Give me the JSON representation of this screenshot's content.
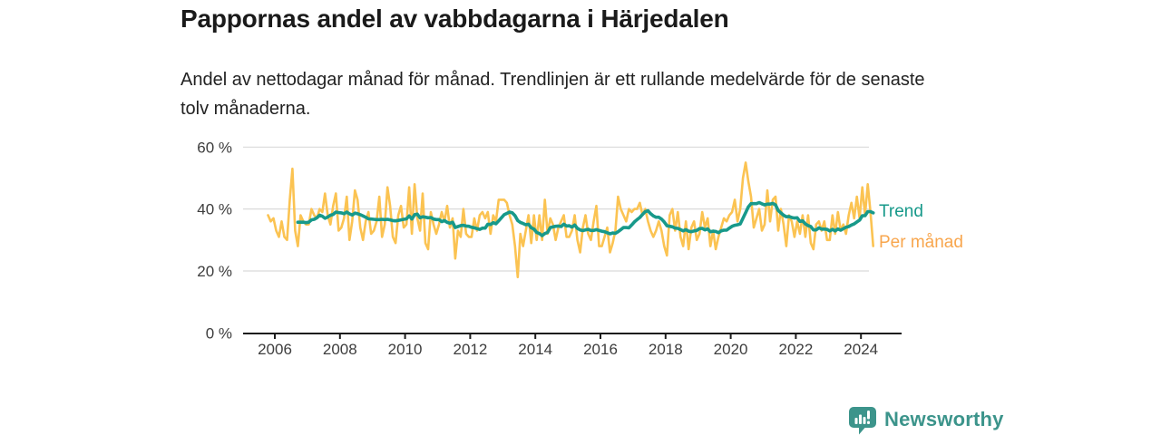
{
  "header": {
    "title": "Pappornas andel av vabbdagarna i Härjedalen",
    "subtitle": "Andel av nettodagar månad för månad. Trendlinjen är ett rullande medelvärde för de senaste tolv månaderna."
  },
  "chart_data": {
    "type": "line",
    "title": "Pappornas andel av vabbdagarna i Härjedalen",
    "xlabel": "",
    "ylabel": "",
    "unit": "%",
    "grid": "horizontal",
    "legend_position": "right-end-of-lines",
    "x_start": "2005-10",
    "x_interval": "month",
    "x_end": "2024-05",
    "xlim": [
      2005.5,
      2025.2
    ],
    "ylim": [
      0,
      63
    ],
    "x_tick_years": [
      2006,
      2008,
      2010,
      2012,
      2014,
      2016,
      2018,
      2020,
      2022,
      2024
    ],
    "y_ticks": [
      {
        "label": "0 %",
        "value": 0
      },
      {
        "label": "20 %",
        "value": 20
      },
      {
        "label": "40 %",
        "value": 40
      },
      {
        "label": "60 %",
        "value": 60
      }
    ],
    "y_grid_values": [
      20,
      40,
      60
    ],
    "legend": {
      "trend": "Trend",
      "monthly": "Per månad"
    },
    "series": [
      {
        "name": "Per månad",
        "color": "#FBC352",
        "label_color": "#F8A64D",
        "values": [
          38,
          36,
          37,
          33,
          31,
          36,
          31,
          30,
          43,
          53,
          33,
          28,
          38,
          36,
          35,
          35,
          40,
          38,
          37,
          40,
          39,
          45,
          38,
          35,
          41,
          45,
          33,
          34,
          37,
          44,
          30,
          36,
          46,
          43,
          34,
          30,
          36,
          39,
          32,
          33,
          36,
          44,
          31,
          35,
          47,
          41,
          31,
          29,
          38,
          41,
          34,
          35,
          47,
          32,
          48,
          37,
          33,
          45,
          29,
          27,
          39,
          35,
          32,
          35,
          39,
          36,
          41,
          34,
          37,
          24,
          33,
          31,
          40,
          32,
          31,
          31,
          37,
          33,
          38,
          39,
          37,
          39,
          32,
          38,
          36,
          43,
          43,
          43,
          42,
          38,
          35,
          28,
          18,
          32,
          28,
          33,
          38,
          29,
          38,
          30,
          38,
          30,
          43,
          32,
          37,
          35,
          30,
          34,
          36,
          38,
          31,
          31,
          33,
          38,
          30,
          26,
          34,
          38,
          32,
          30,
          36,
          41,
          28,
          28,
          31,
          34,
          26,
          29,
          33,
          44,
          40,
          38,
          36,
          40,
          39,
          40,
          40,
          42,
          38,
          40,
          36,
          33,
          31,
          33,
          36,
          33,
          28,
          25,
          38,
          40,
          33,
          39,
          31,
          28,
          36,
          27,
          34,
          36,
          30,
          32,
          39,
          34,
          37,
          28,
          33,
          27,
          31,
          34,
          37,
          36,
          38,
          39,
          43,
          36,
          40,
          50,
          55,
          49,
          44,
          34,
          37,
          40,
          33,
          35,
          46,
          36,
          43,
          44,
          33,
          40,
          35,
          28,
          38,
          36,
          31,
          36,
          32,
          38,
          31,
          38,
          29,
          27,
          35,
          36,
          33,
          36,
          30,
          30,
          38,
          32,
          39,
          33,
          35,
          32,
          38,
          42,
          37,
          44,
          37,
          47,
          38,
          48,
          39,
          28
        ]
      },
      {
        "name": "Trend",
        "color": "#17998A",
        "label_color": "#17998A",
        "derived": "rolling mean of last 12 months of 'Per månad'"
      }
    ]
  },
  "footer": {
    "brand": "Newsworthy",
    "brand_color": "#3C948B",
    "icon": "newsworthy-speech-bubble-bar-chart-icon"
  }
}
